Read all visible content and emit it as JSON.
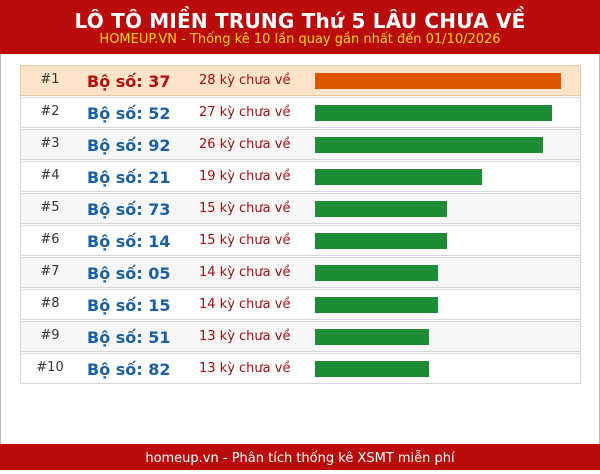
{
  "header": {
    "title": "LÔ TÔ MIỀN TRUNG Thứ 5 LÂU CHƯA VỀ",
    "subtitle": "HOMEUP.VN - Thống kê 10 lần quay gần nhất đến 01/10/2026"
  },
  "footer": {
    "text": "homeup.vn - Phân tích thống kê XSMT miễn phí"
  },
  "colors": {
    "header_bg": "#bb0a0a",
    "subtitle": "#ffd21a",
    "top_row_bg": "#fde3c8",
    "top_bar": "#dd5500",
    "bar": "#1e8c35",
    "number": "#1b5fa8"
  },
  "chart_data": {
    "type": "bar",
    "orientation": "horizontal",
    "value_max": 28,
    "rows": [
      {
        "rank": "#1",
        "label": "Bộ số: 37",
        "days_text": "28 kỳ chưa về",
        "value": 28
      },
      {
        "rank": "#2",
        "label": "Bộ số: 52",
        "days_text": "27 kỳ chưa về",
        "value": 27
      },
      {
        "rank": "#3",
        "label": "Bộ số: 92",
        "days_text": "26 kỳ chưa về",
        "value": 26
      },
      {
        "rank": "#4",
        "label": "Bộ số: 21",
        "days_text": "19 kỳ chưa về",
        "value": 19
      },
      {
        "rank": "#5",
        "label": "Bộ số: 73",
        "days_text": "15 kỳ chưa về",
        "value": 15
      },
      {
        "rank": "#6",
        "label": "Bộ số: 14",
        "days_text": "15 kỳ chưa về",
        "value": 15
      },
      {
        "rank": "#7",
        "label": "Bộ số: 05",
        "days_text": "14 kỳ chưa về",
        "value": 14
      },
      {
        "rank": "#8",
        "label": "Bộ số: 15",
        "days_text": "14 kỳ chưa về",
        "value": 14
      },
      {
        "rank": "#9",
        "label": "Bộ số: 51",
        "days_text": "13 kỳ chưa về",
        "value": 13
      },
      {
        "rank": "#10",
        "label": "Bộ số: 82",
        "days_text": "13 kỳ chưa về",
        "value": 13
      }
    ]
  }
}
